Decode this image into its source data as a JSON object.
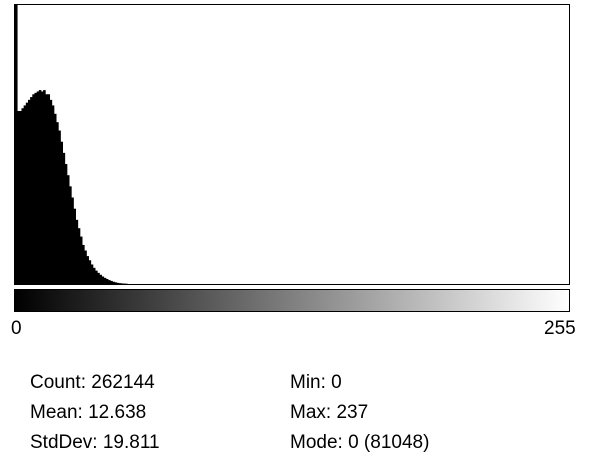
{
  "chart_data": {
    "type": "area",
    "title": "",
    "xlabel": "",
    "ylabel": "",
    "x_range": [
      0,
      255
    ],
    "x_ticks": [
      "0",
      "255"
    ],
    "grid": false,
    "legend": "none",
    "fill_color": "#000000",
    "spike": {
      "x": 0,
      "count": 81048
    },
    "profile": [
      [
        1,
        0.62
      ],
      [
        2,
        0.62
      ],
      [
        3,
        0.63
      ],
      [
        4,
        0.64
      ],
      [
        5,
        0.65
      ],
      [
        6,
        0.66
      ],
      [
        7,
        0.67
      ],
      [
        8,
        0.68
      ],
      [
        9,
        0.685
      ],
      [
        10,
        0.69
      ],
      [
        11,
        0.695
      ],
      [
        12,
        0.69
      ],
      [
        13,
        0.695
      ],
      [
        14,
        0.68
      ],
      [
        15,
        0.68
      ],
      [
        16,
        0.66
      ],
      [
        17,
        0.64
      ],
      [
        18,
        0.61
      ],
      [
        19,
        0.58
      ],
      [
        20,
        0.55
      ],
      [
        21,
        0.51
      ],
      [
        22,
        0.47
      ],
      [
        23,
        0.43
      ],
      [
        24,
        0.39
      ],
      [
        25,
        0.35
      ],
      [
        26,
        0.31
      ],
      [
        27,
        0.27
      ],
      [
        28,
        0.23
      ],
      [
        29,
        0.2
      ],
      [
        30,
        0.17
      ],
      [
        31,
        0.14
      ],
      [
        32,
        0.12
      ],
      [
        33,
        0.1
      ],
      [
        34,
        0.085
      ],
      [
        35,
        0.07
      ],
      [
        36,
        0.058
      ],
      [
        37,
        0.048
      ],
      [
        38,
        0.04
      ],
      [
        39,
        0.033
      ],
      [
        40,
        0.027
      ],
      [
        41,
        0.022
      ],
      [
        42,
        0.018
      ],
      [
        43,
        0.014
      ],
      [
        44,
        0.011
      ],
      [
        45,
        0.008
      ],
      [
        46,
        0.006
      ],
      [
        47,
        0.004
      ],
      [
        48,
        0.003
      ],
      [
        49,
        0.002
      ],
      [
        50,
        0.0015
      ],
      [
        51,
        0.001
      ],
      [
        52,
        0
      ]
    ]
  },
  "stats": {
    "count": "Count: 262144",
    "mean": "Mean: 12.638",
    "stddev": "StdDev: 19.811",
    "min": "Min: 0",
    "max": "Max: 237",
    "mode": "Mode: 0 (81048)"
  }
}
